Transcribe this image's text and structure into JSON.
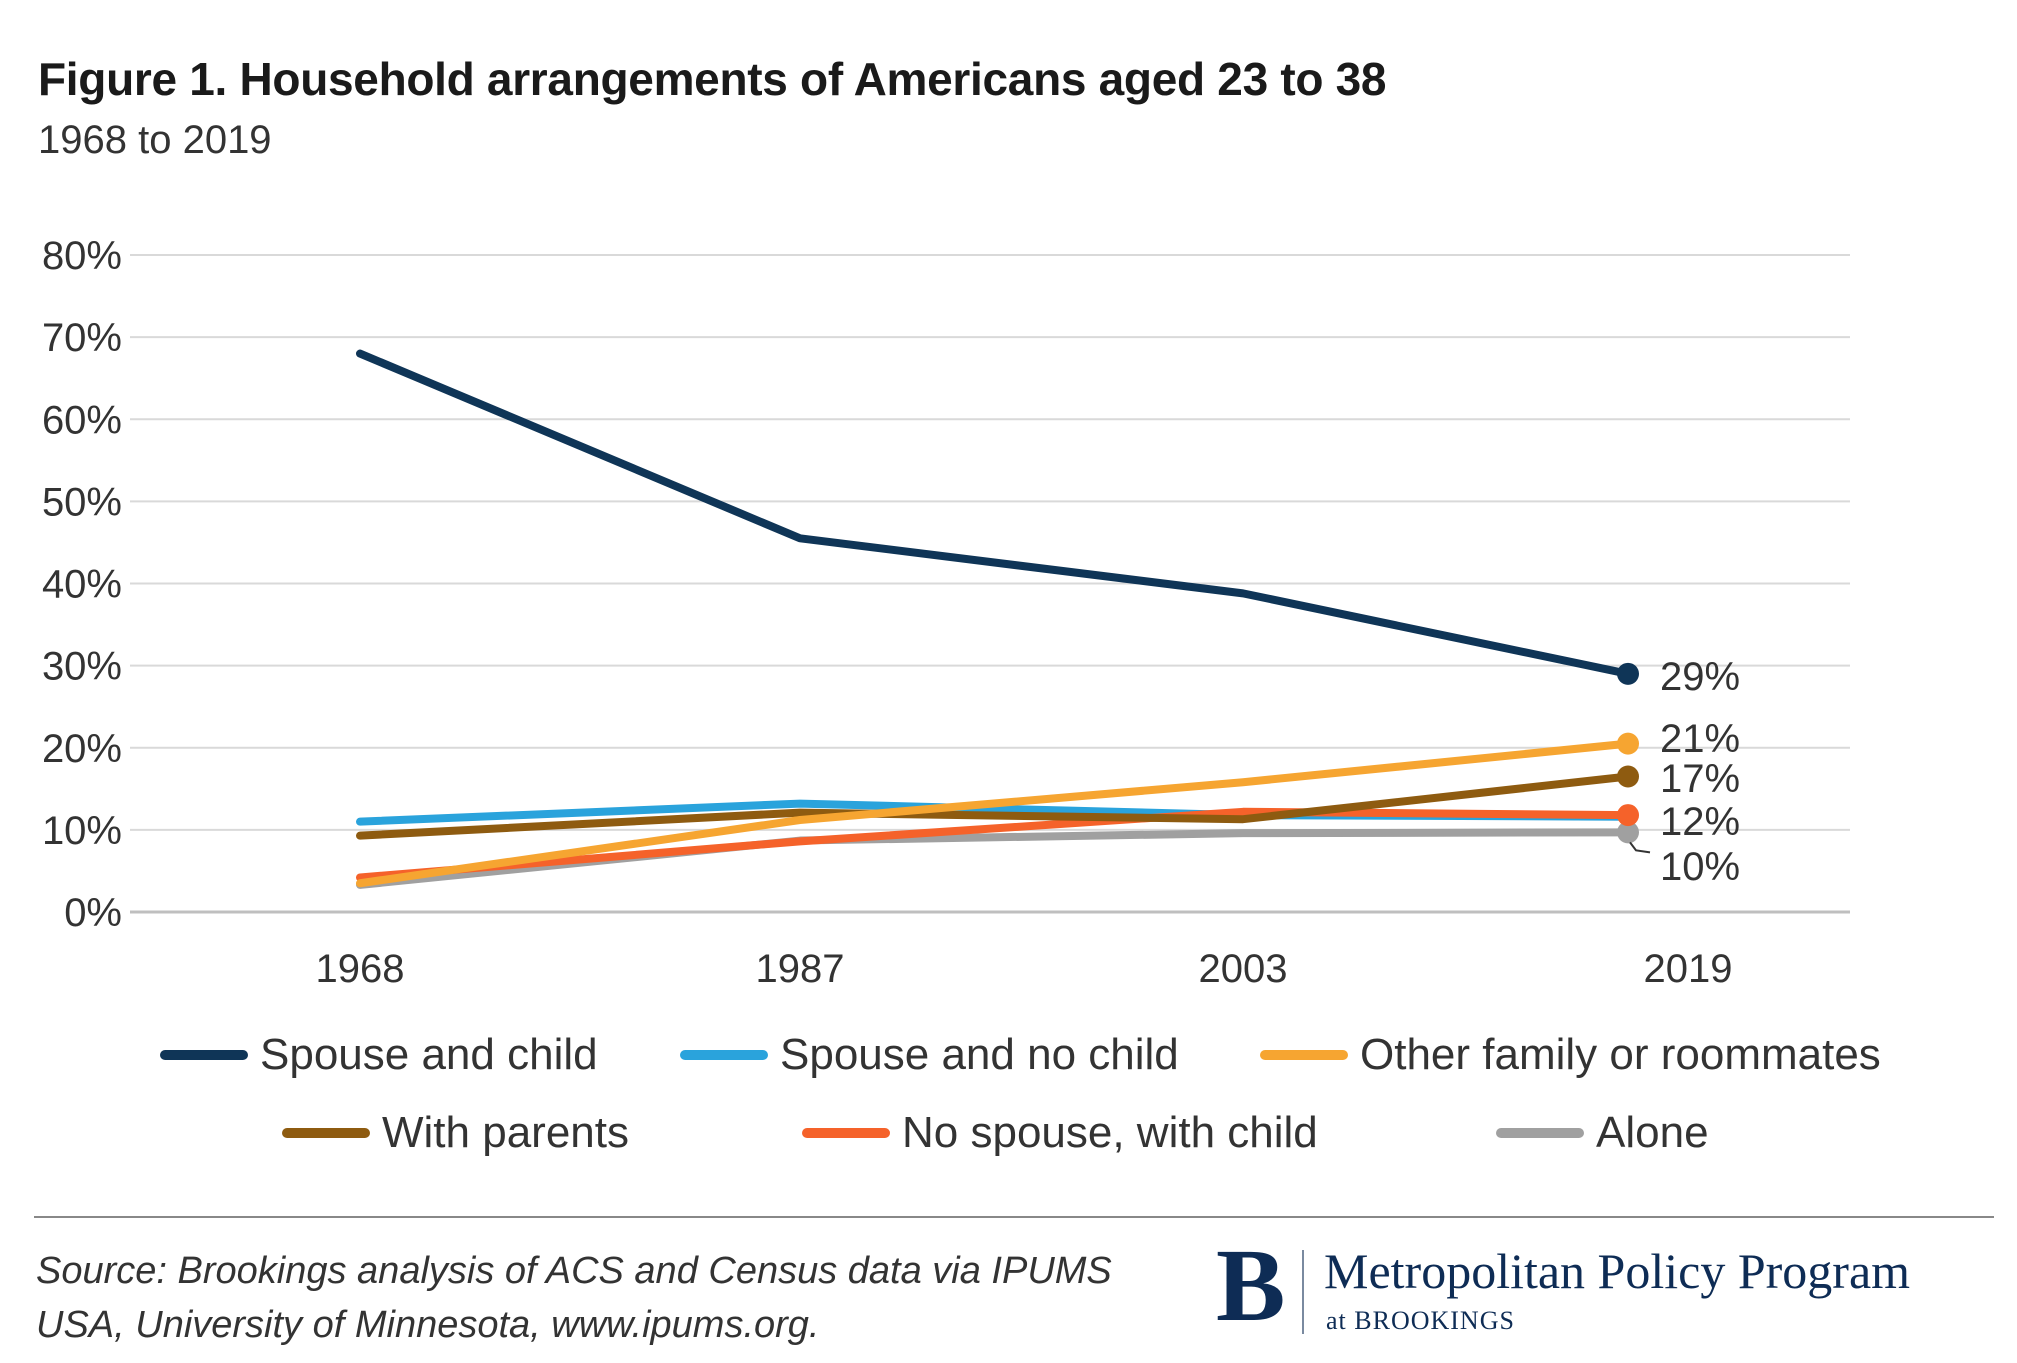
{
  "header": {
    "title": "Figure 1. Household arrangements of Americans aged 23 to 38",
    "subtitle": "1968 to 2019"
  },
  "chart_data": {
    "type": "line",
    "title": "Figure 1. Household arrangements of Americans aged 23 to 38",
    "subtitle": "1968 to 2019",
    "x": [
      "1968",
      "1987",
      "2003",
      "2019"
    ],
    "y_ticks": [
      "0%",
      "10%",
      "20%",
      "30%",
      "40%",
      "50%",
      "60%",
      "70%",
      "80%"
    ],
    "ylim": [
      0,
      80
    ],
    "grid": true,
    "legend_position": "bottom",
    "series": [
      {
        "name": "Spouse and child",
        "color": "#0f3557",
        "values": [
          68,
          45.5,
          38.8,
          29
        ],
        "end_label": "29%"
      },
      {
        "name": "Spouse and no child",
        "color": "#2aa3dc",
        "values": [
          11,
          13.2,
          11.8,
          11.6
        ],
        "end_label": ""
      },
      {
        "name": "Other family or roommates",
        "color": "#f6a531",
        "values": [
          3.5,
          11.2,
          15.8,
          20.5
        ],
        "end_label": "21%"
      },
      {
        "name": "With parents",
        "color": "#8e5b10",
        "values": [
          9.3,
          12.1,
          11.3,
          16.5
        ],
        "end_label": "17%"
      },
      {
        "name": "No spouse, with child",
        "color": "#f5622a",
        "values": [
          4.2,
          8.6,
          12.2,
          11.8
        ],
        "end_label": "12%"
      },
      {
        "name": "Alone",
        "color": "#a0a0a0",
        "values": [
          3.3,
          8.7,
          9.6,
          9.7
        ],
        "end_label": "10%"
      }
    ]
  },
  "footer": {
    "source_line1": "Source: Brookings analysis of ACS and Census data  via IPUMS",
    "source_line2": "USA, University of Minnesota, www.ipums.org.",
    "logo_mark": "B",
    "logo_name": "Metropolitan Policy Program",
    "logo_sub": "at BROOKINGS"
  }
}
